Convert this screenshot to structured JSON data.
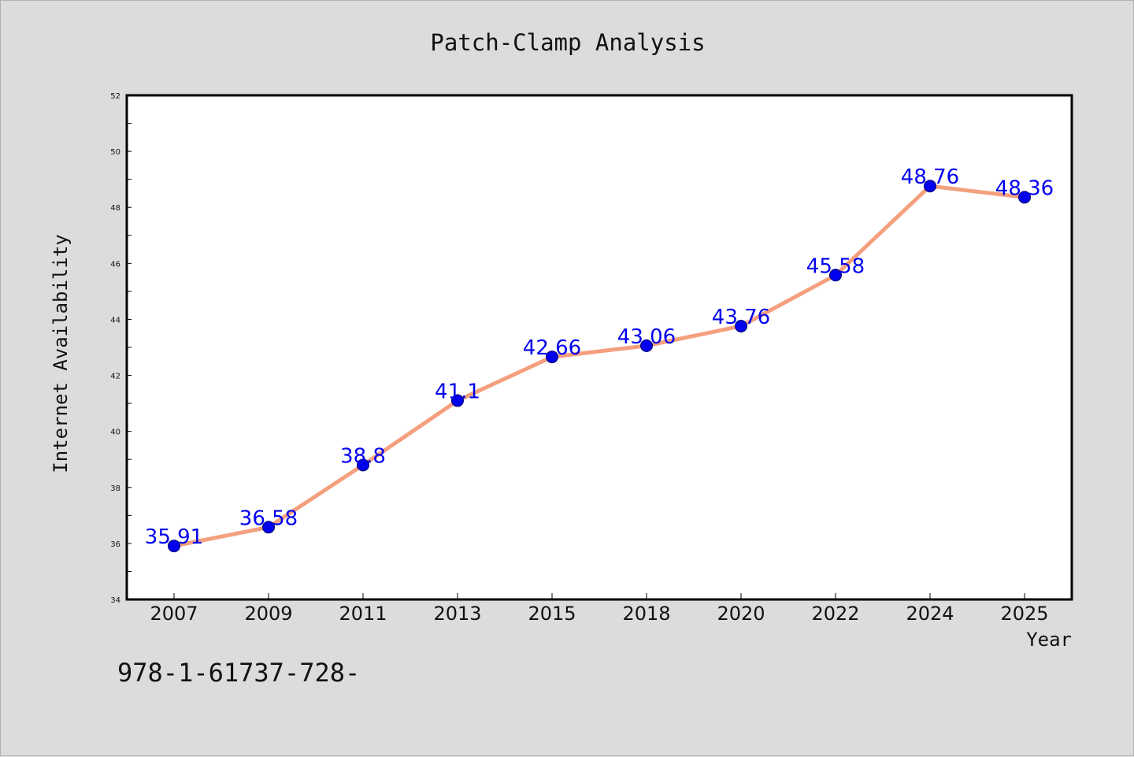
{
  "chart_data": {
    "type": "line",
    "title": "Patch-Clamp Analysis",
    "xlabel": "Year",
    "ylabel": "Internet Availability",
    "categories": [
      "2007",
      "2009",
      "2011",
      "2013",
      "2015",
      "2018",
      "2020",
      "2022",
      "2024",
      "2025"
    ],
    "series": [
      {
        "values": [
          35.91,
          36.58,
          38.8,
          41.1,
          42.66,
          43.06,
          43.76,
          45.58,
          48.76,
          48.36
        ],
        "labels": [
          "35.91",
          "36.58",
          "38.8",
          "41.1",
          "42.66",
          "43.06",
          "43.76",
          "45.58",
          "48.76",
          "48.36"
        ],
        "line_color": "#f4a07e",
        "marker_color": "#0000ee"
      }
    ],
    "ylim": [
      34,
      52
    ],
    "yticks": [
      "34",
      "36",
      "38",
      "40",
      "42",
      "44",
      "46",
      "48",
      "50",
      "52"
    ],
    "grid": false,
    "legend": "none"
  },
  "footer": {
    "text": "978-1-61737-728-"
  }
}
